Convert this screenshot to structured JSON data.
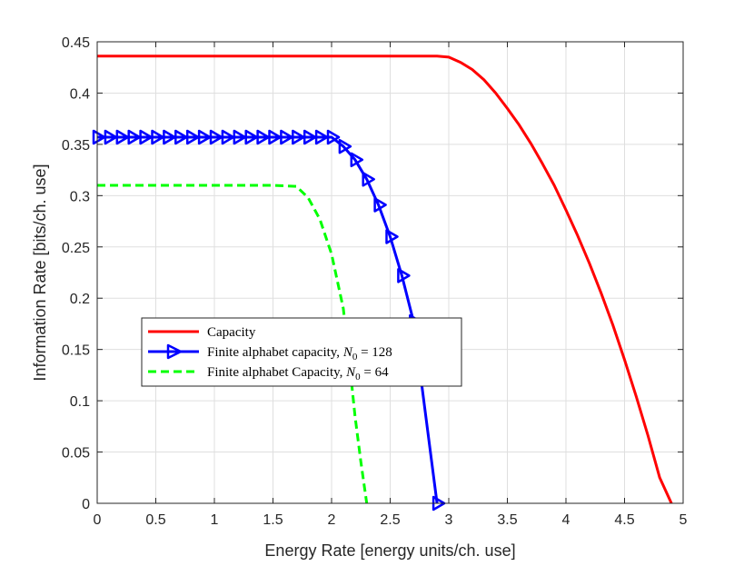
{
  "chart_data": {
    "type": "line",
    "title": "",
    "xlabel": "Energy Rate [energy units/ch. use]",
    "ylabel": "Information Rate [bits/ch. use]",
    "xlim": [
      0,
      5
    ],
    "ylim": [
      0,
      0.45
    ],
    "grid": true,
    "legend_position": "center-left",
    "xticks": [
      0,
      0.5,
      1,
      1.5,
      2,
      2.5,
      3,
      3.5,
      4,
      4.5,
      5
    ],
    "xtick_labels": [
      "0",
      "0.5",
      "1",
      "1.5",
      "2",
      "2.5",
      "3",
      "3.5",
      "4",
      "4.5",
      "5"
    ],
    "yticks": [
      0,
      0.05,
      0.1,
      0.15,
      0.2,
      0.25,
      0.3,
      0.35,
      0.4,
      0.45
    ],
    "ytick_labels": [
      "0",
      "0.05",
      "0.1",
      "0.15",
      "0.2",
      "0.25",
      "0.3",
      "0.35",
      "0.4",
      "0.45"
    ],
    "series": [
      {
        "name": "Capacity",
        "legend_label": "Capacity",
        "color": "#ff0000",
        "line_style": "solid",
        "marker": "none",
        "x": [
          0,
          1,
          2,
          2.9,
          3.0,
          3.1,
          3.2,
          3.3,
          3.4,
          3.5,
          3.6,
          3.7,
          3.8,
          3.9,
          4.0,
          4.1,
          4.2,
          4.3,
          4.4,
          4.5,
          4.6,
          4.7,
          4.8,
          4.9
        ],
        "y": [
          0.436,
          0.436,
          0.436,
          0.436,
          0.435,
          0.43,
          0.423,
          0.413,
          0.4,
          0.385,
          0.369,
          0.351,
          0.331,
          0.31,
          0.286,
          0.261,
          0.234,
          0.205,
          0.174,
          0.14,
          0.104,
          0.066,
          0.025,
          0.0
        ]
      },
      {
        "name": "Finite alphabet capacity, N0 = 128",
        "legend_prefix": "Finite alphabet capacity, ",
        "legend_sym": "N",
        "legend_sub": "0",
        "legend_eq": " = 128",
        "color": "#0000ff",
        "line_style": "solid",
        "marker": "triangle-right",
        "x": [
          0,
          0.1,
          0.2,
          0.3,
          0.4,
          0.5,
          0.6,
          0.7,
          0.8,
          0.9,
          1.0,
          1.1,
          1.2,
          1.3,
          1.4,
          1.5,
          1.6,
          1.7,
          1.8,
          1.9,
          2.0,
          2.1,
          2.2,
          2.3,
          2.4,
          2.5,
          2.6,
          2.7,
          2.9
        ],
        "y": [
          0.357,
          0.357,
          0.357,
          0.357,
          0.357,
          0.357,
          0.357,
          0.357,
          0.357,
          0.357,
          0.357,
          0.357,
          0.357,
          0.357,
          0.357,
          0.357,
          0.357,
          0.357,
          0.357,
          0.357,
          0.357,
          0.348,
          0.335,
          0.316,
          0.291,
          0.26,
          0.222,
          0.177,
          0.0
        ]
      },
      {
        "name": "Finite alphabet Capacity, N0 = 64",
        "legend_prefix": "Finite alphabet Capacity, ",
        "legend_sym": "N",
        "legend_sub": "0",
        "legend_eq": " = 64",
        "color": "#00ff00",
        "line_style": "dashed",
        "marker": "none",
        "x": [
          0,
          0.5,
          1.0,
          1.5,
          1.7,
          1.8,
          1.9,
          2.0,
          2.1,
          2.15,
          2.2,
          2.25,
          2.3
        ],
        "y": [
          0.31,
          0.31,
          0.31,
          0.31,
          0.309,
          0.298,
          0.277,
          0.243,
          0.19,
          0.14,
          0.085,
          0.04,
          0.0
        ]
      }
    ]
  }
}
